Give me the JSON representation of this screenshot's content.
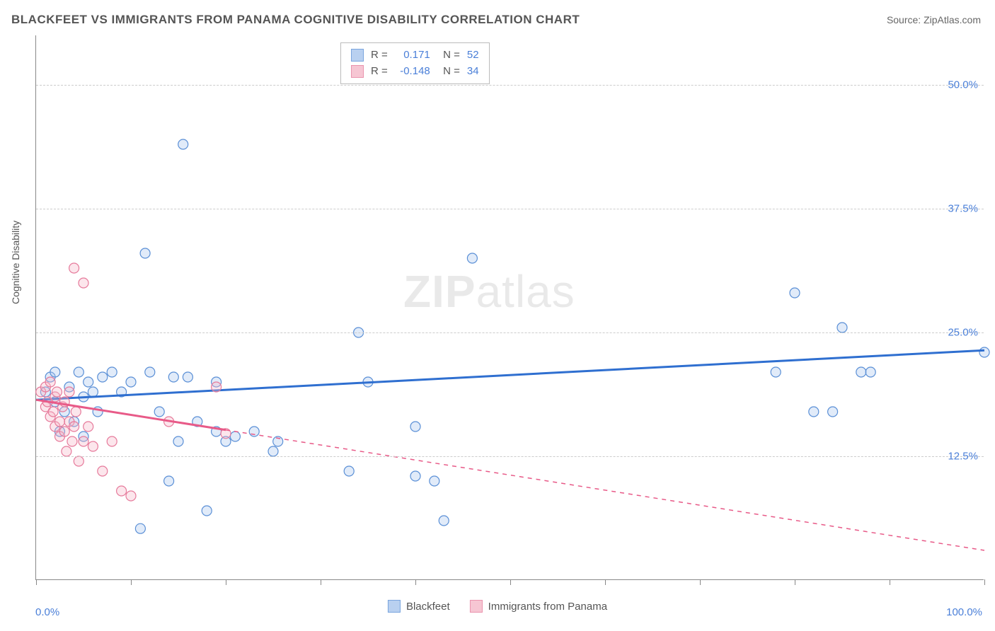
{
  "title": "BLACKFEET VS IMMIGRANTS FROM PANAMA COGNITIVE DISABILITY CORRELATION CHART",
  "source_label": "Source: ZipAtlas.com",
  "watermark": {
    "bold": "ZIP",
    "rest": "atlas"
  },
  "ylabel": "Cognitive Disability",
  "chart": {
    "type": "scatter",
    "xlim": [
      0,
      100
    ],
    "ylim": [
      0,
      55
    ],
    "xlabel_min": "0.0%",
    "xlabel_max": "100.0%",
    "xtick_positions": [
      0,
      10,
      20,
      30,
      40,
      50,
      60,
      70,
      80,
      90,
      100
    ],
    "ytick_labels": [
      {
        "value": 12.5,
        "label": "12.5%"
      },
      {
        "value": 25.0,
        "label": "25.0%"
      },
      {
        "value": 37.5,
        "label": "37.5%"
      },
      {
        "value": 50.0,
        "label": "50.0%"
      }
    ],
    "background_color": "#ffffff",
    "grid_color": "#cccccc",
    "axis_color": "#888888",
    "marker_radius": 7,
    "marker_stroke_width": 1.2,
    "marker_fill_opacity": 0.35,
    "trend_line_width": 3,
    "series": [
      {
        "id": "blackfeet",
        "label": "Blackfeet",
        "fill_color": "#a8c5ed",
        "stroke_color": "#5a8fd6",
        "line_color": "#2f6fd0",
        "R": "0.171",
        "N": "52",
        "trend": {
          "x1": 0,
          "y1": 18.2,
          "x2": 100,
          "y2": 23.2,
          "dashed_from_x": null
        },
        "points": [
          [
            1,
            19
          ],
          [
            1.5,
            20.5
          ],
          [
            2,
            18
          ],
          [
            2,
            21
          ],
          [
            2.5,
            15
          ],
          [
            3,
            17
          ],
          [
            3.5,
            19.5
          ],
          [
            4,
            16
          ],
          [
            4.5,
            21
          ],
          [
            5,
            18.5
          ],
          [
            5,
            14.5
          ],
          [
            5.5,
            20
          ],
          [
            6,
            19
          ],
          [
            6.5,
            17
          ],
          [
            7,
            20.5
          ],
          [
            8,
            21
          ],
          [
            9,
            19
          ],
          [
            10,
            20
          ],
          [
            11,
            5.2
          ],
          [
            11.5,
            33
          ],
          [
            12,
            21
          ],
          [
            13,
            17
          ],
          [
            14,
            10
          ],
          [
            14.5,
            20.5
          ],
          [
            15,
            14
          ],
          [
            15.5,
            44
          ],
          [
            16,
            20.5
          ],
          [
            17,
            16
          ],
          [
            18,
            7
          ],
          [
            19,
            15
          ],
          [
            19,
            20
          ],
          [
            20,
            14
          ],
          [
            21,
            14.5
          ],
          [
            23,
            15
          ],
          [
            25,
            13
          ],
          [
            25.5,
            14
          ],
          [
            33,
            11
          ],
          [
            34,
            25
          ],
          [
            35,
            20
          ],
          [
            40,
            10.5
          ],
          [
            40,
            15.5
          ],
          [
            42,
            10
          ],
          [
            43,
            6
          ],
          [
            46,
            32.5
          ],
          [
            78,
            21
          ],
          [
            80,
            29
          ],
          [
            82,
            17
          ],
          [
            84,
            17
          ],
          [
            85,
            25.5
          ],
          [
            87,
            21
          ],
          [
            88,
            21
          ],
          [
            100,
            23
          ]
        ]
      },
      {
        "id": "panama",
        "label": "Immigrants from Panama",
        "fill_color": "#f5b8c9",
        "stroke_color": "#e67a9b",
        "line_color": "#e85a88",
        "R": "-0.148",
        "N": "34",
        "trend": {
          "x1": 0,
          "y1": 18.2,
          "x2": 100,
          "y2": 3.0,
          "dashed_from_x": 20
        },
        "points": [
          [
            0.5,
            19
          ],
          [
            1,
            17.5
          ],
          [
            1,
            19.5
          ],
          [
            1.2,
            18
          ],
          [
            1.5,
            16.5
          ],
          [
            1.5,
            20
          ],
          [
            1.8,
            17
          ],
          [
            2,
            15.5
          ],
          [
            2,
            18.5
          ],
          [
            2.2,
            19
          ],
          [
            2.5,
            16
          ],
          [
            2.5,
            14.5
          ],
          [
            2.8,
            17.5
          ],
          [
            3,
            15
          ],
          [
            3,
            18
          ],
          [
            3.2,
            13
          ],
          [
            3.5,
            16
          ],
          [
            3.5,
            19
          ],
          [
            3.8,
            14
          ],
          [
            4,
            15.5
          ],
          [
            4,
            31.5
          ],
          [
            4.2,
            17
          ],
          [
            4.5,
            12
          ],
          [
            5,
            14
          ],
          [
            5,
            30
          ],
          [
            5.5,
            15.5
          ],
          [
            6,
            13.5
          ],
          [
            7,
            11
          ],
          [
            8,
            14
          ],
          [
            9,
            9
          ],
          [
            10,
            8.5
          ],
          [
            14,
            16
          ],
          [
            19,
            19.5
          ],
          [
            20,
            14.8
          ]
        ]
      }
    ]
  },
  "stats_box": {
    "R_label": "R =",
    "N_label": "N ="
  }
}
